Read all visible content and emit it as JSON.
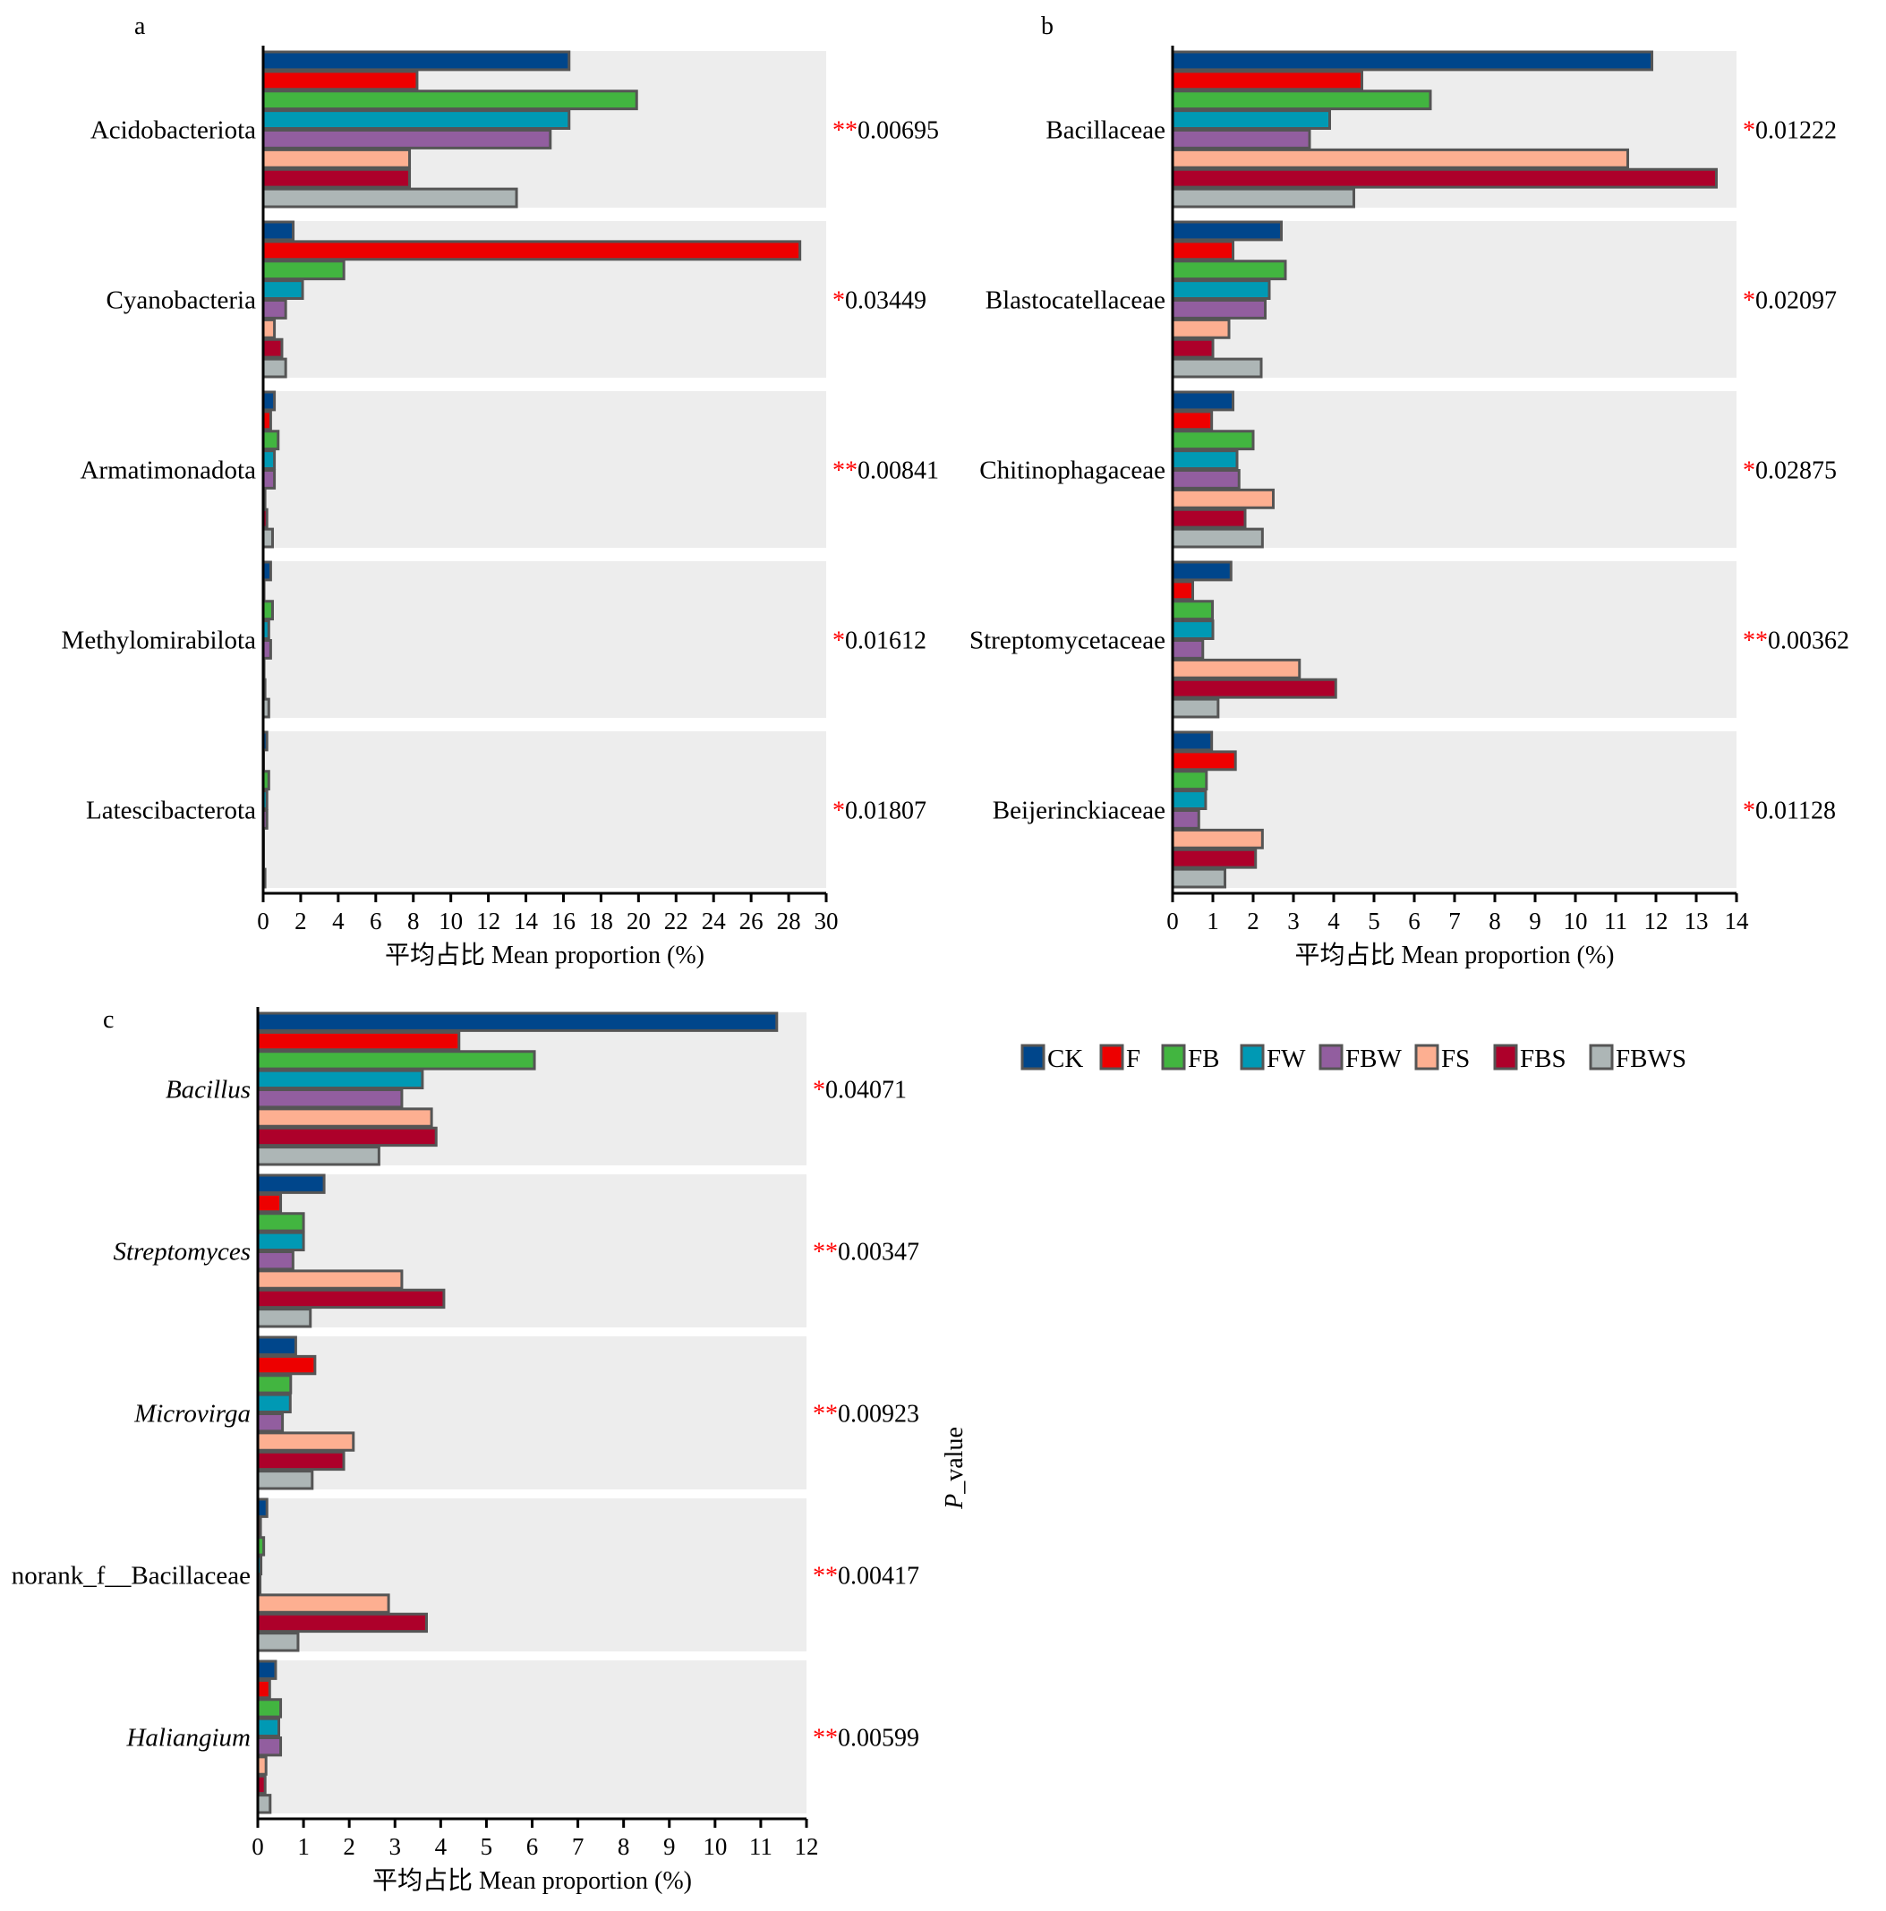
{
  "legend": {
    "items": [
      {
        "name": "CK",
        "color": "#00468b"
      },
      {
        "name": "F",
        "color": "#ed0000"
      },
      {
        "name": "FB",
        "color": "#42b540"
      },
      {
        "name": "FW",
        "color": "#0099b4"
      },
      {
        "name": "FBW",
        "color": "#925e9f"
      },
      {
        "name": "FS",
        "color": "#fdaf91"
      },
      {
        "name": "FBS",
        "color": "#ad002a"
      },
      {
        "name": "FBWS",
        "color": "#adb6b6"
      }
    ]
  },
  "p_value_title": "P_value",
  "p_value_title_italic": "P",
  "p_value_title_rest": "_value",
  "chart_data": [
    {
      "type": "bar",
      "orientation": "horizontal",
      "panel": "a",
      "xlabel": "平均占比 Mean proportion (%)",
      "xlim": [
        0,
        30
      ],
      "xticks": [
        0,
        2,
        4,
        6,
        8,
        10,
        12,
        14,
        16,
        18,
        20,
        22,
        24,
        26,
        28,
        30
      ],
      "categories": [
        "Acidobacteriota",
        "Cyanobacteria",
        "Armatimonadota",
        "Methylomirabilota",
        "Latescibacterota"
      ],
      "italic": false,
      "p_values": [
        {
          "stars": "**",
          "value": "0.00695"
        },
        {
          "stars": "*",
          "value": "0.03449"
        },
        {
          "stars": "**",
          "value": "0.00841"
        },
        {
          "stars": "*",
          "value": "0.01612"
        },
        {
          "stars": "*",
          "value": "0.01807"
        }
      ],
      "series": [
        {
          "name": "CK",
          "values": [
            16.3,
            1.6,
            0.6,
            0.4,
            0.2
          ]
        },
        {
          "name": "F",
          "values": [
            8.2,
            28.6,
            0.4,
            0.05,
            0.02
          ]
        },
        {
          "name": "FB",
          "values": [
            19.9,
            4.3,
            0.8,
            0.5,
            0.3
          ]
        },
        {
          "name": "FW",
          "values": [
            16.3,
            2.1,
            0.6,
            0.3,
            0.2
          ]
        },
        {
          "name": "FBW",
          "values": [
            15.3,
            1.2,
            0.6,
            0.4,
            0.2
          ]
        },
        {
          "name": "FS",
          "values": [
            7.8,
            0.6,
            0.1,
            0.05,
            0.02
          ]
        },
        {
          "name": "FBS",
          "values": [
            7.8,
            1.0,
            0.2,
            0.1,
            0.02
          ]
        },
        {
          "name": "FBWS",
          "values": [
            13.5,
            1.2,
            0.5,
            0.3,
            0.1
          ]
        }
      ]
    },
    {
      "type": "bar",
      "orientation": "horizontal",
      "panel": "b",
      "xlabel": "平均占比 Mean proportion (%)",
      "xlim": [
        0,
        14
      ],
      "xticks": [
        0,
        1,
        2,
        3,
        4,
        5,
        6,
        7,
        8,
        9,
        10,
        11,
        12,
        13,
        14
      ],
      "categories": [
        "Bacillaceae",
        "Blastocatellaceae",
        "Chitinophagaceae",
        "Streptomycetaceae",
        "Beijerinckiaceae"
      ],
      "italic": false,
      "p_values": [
        {
          "stars": "*",
          "value": "0.01222"
        },
        {
          "stars": "*",
          "value": "0.02097"
        },
        {
          "stars": "*",
          "value": "0.02875"
        },
        {
          "stars": "**",
          "value": "0.00362"
        },
        {
          "stars": "*",
          "value": "0.01128"
        }
      ],
      "series": [
        {
          "name": "CK",
          "values": [
            11.9,
            2.7,
            1.5,
            1.45,
            0.97
          ]
        },
        {
          "name": "F",
          "values": [
            4.7,
            1.5,
            0.97,
            0.5,
            1.56
          ]
        },
        {
          "name": "FB",
          "values": [
            6.4,
            2.8,
            2.0,
            0.99,
            0.84
          ]
        },
        {
          "name": "FW",
          "values": [
            3.9,
            2.4,
            1.6,
            1.0,
            0.82
          ]
        },
        {
          "name": "FBW",
          "values": [
            3.4,
            2.3,
            1.65,
            0.75,
            0.65
          ]
        },
        {
          "name": "FS",
          "values": [
            11.3,
            1.4,
            2.5,
            3.15,
            2.23
          ]
        },
        {
          "name": "FBS",
          "values": [
            13.5,
            1.0,
            1.8,
            4.05,
            2.06
          ]
        },
        {
          "name": "FBWS",
          "values": [
            4.5,
            2.2,
            2.23,
            1.13,
            1.3
          ]
        }
      ]
    },
    {
      "type": "bar",
      "orientation": "horizontal",
      "panel": "c",
      "xlabel": "平均占比 Mean proportion (%)",
      "xlim": [
        0,
        12
      ],
      "xticks": [
        0,
        1,
        2,
        3,
        4,
        5,
        6,
        7,
        8,
        9,
        10,
        11,
        12
      ],
      "categories": [
        "Bacillus",
        "Streptomyces",
        "Microvirga",
        "norank_f__Bacillaceae",
        "Haliangium"
      ],
      "italic_flags": [
        true,
        true,
        true,
        false,
        true
      ],
      "p_values": [
        {
          "stars": "*",
          "value": "0.04071"
        },
        {
          "stars": "**",
          "value": "0.00347"
        },
        {
          "stars": "**",
          "value": "0.00923"
        },
        {
          "stars": "**",
          "value": "0.00417"
        },
        {
          "stars": "**",
          "value": "0.00599"
        }
      ],
      "series": [
        {
          "name": "CK",
          "values": [
            11.35,
            1.45,
            0.83,
            0.2,
            0.39
          ]
        },
        {
          "name": "F",
          "values": [
            4.4,
            0.5,
            1.25,
            0.06,
            0.26
          ]
        },
        {
          "name": "FB",
          "values": [
            6.05,
            1.0,
            0.72,
            0.13,
            0.5
          ]
        },
        {
          "name": "FW",
          "values": [
            3.6,
            1.0,
            0.71,
            0.07,
            0.46
          ]
        },
        {
          "name": "FBW",
          "values": [
            3.15,
            0.77,
            0.54,
            0.05,
            0.5
          ]
        },
        {
          "name": "FS",
          "values": [
            3.8,
            3.15,
            2.09,
            2.86,
            0.18
          ]
        },
        {
          "name": "FBS",
          "values": [
            3.9,
            4.07,
            1.88,
            3.69,
            0.16
          ]
        },
        {
          "name": "FBWS",
          "values": [
            2.65,
            1.15,
            1.19,
            0.88,
            0.27
          ]
        }
      ]
    }
  ]
}
